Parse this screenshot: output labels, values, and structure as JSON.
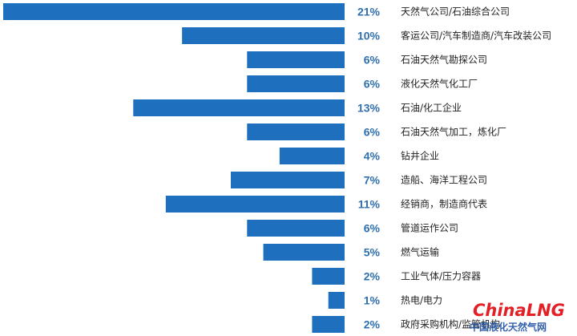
{
  "chart_data": {
    "type": "bar",
    "orientation": "horizontal",
    "categories": [
      "天然气公司/石油综合公司",
      "客运公司/汽车制造商/汽车改装公司",
      "石油天然气勘探公司",
      "液化天然气化工厂",
      "石油/化工企业",
      "石油天然气加工，炼化厂",
      "钻井企业",
      "造船、海洋工程公司",
      "经销商，制造商代表",
      "管道运作公司",
      "燃气运输",
      "工业气体/压力容器",
      "热电/电力",
      "政府采购机构/监管机构"
    ],
    "values": [
      21,
      10,
      6,
      6,
      13,
      6,
      4,
      7,
      11,
      6,
      5,
      2,
      1,
      2
    ],
    "data_labels": [
      "21%",
      "10%",
      "6%",
      "6%",
      "13%",
      "6%",
      "4%",
      "7%",
      "11%",
      "6%",
      "5%",
      "2%",
      "1%",
      "2%"
    ],
    "unit": "%",
    "bar_color": "#1f6fbf",
    "label_color": "#2f6fae",
    "title": "",
    "xlabel": "",
    "ylabel": "",
    "xlim": [
      0,
      21
    ],
    "grid": false,
    "legend": "none"
  },
  "watermark": {
    "brand": "ChinaLNG",
    "subtitle": "中国液化天然气网",
    "color": "#e41f26"
  }
}
